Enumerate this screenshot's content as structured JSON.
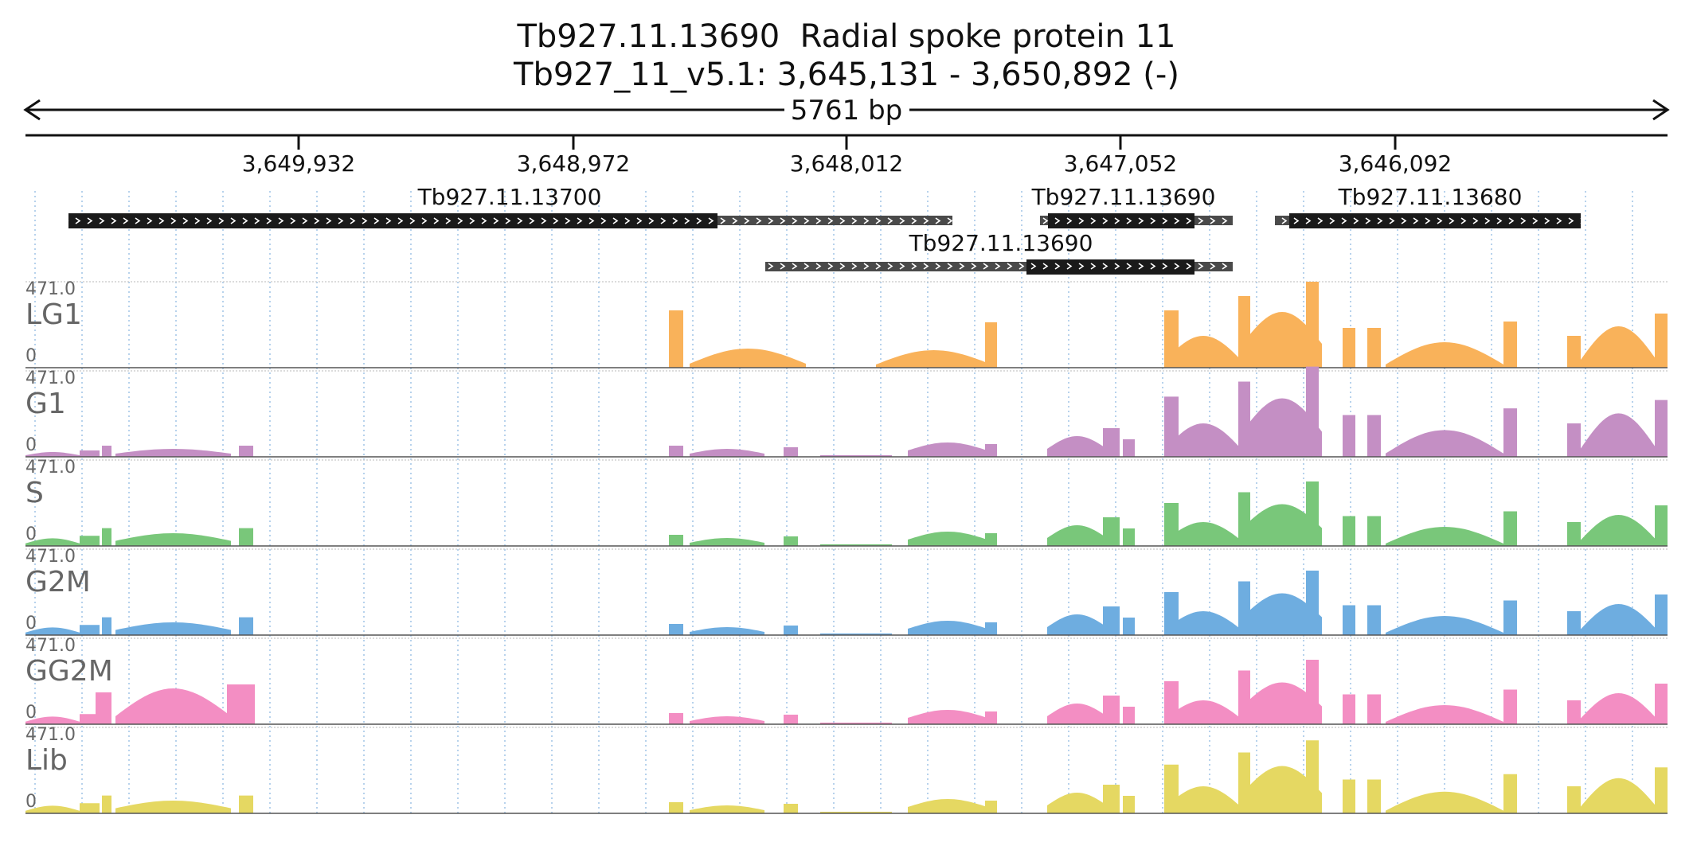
{
  "header": {
    "title": "Tb927.11.13690  Radial spoke protein 11",
    "location": "Tb927_11_v5.1: 3,645,131 - 3,650,892 (-)",
    "span_label": "5761 bp"
  },
  "ruler": {
    "ticks": [
      "3,649,932",
      "3,648,972",
      "3,648,012",
      "3,647,052",
      "3,646,092"
    ]
  },
  "genes": [
    {
      "id": "Tb927.11.13700"
    },
    {
      "id": "Tb927.11.13690"
    },
    {
      "id": "Tb927.11.13680"
    },
    {
      "id": "Tb927.11.13690"
    }
  ],
  "tracks": [
    {
      "name": "LG1",
      "max": "471.0",
      "min": "0",
      "color": "#f9b25a"
    },
    {
      "name": "G1",
      "max": "471.0",
      "min": "0",
      "color": "#c48fc4"
    },
    {
      "name": "S",
      "max": "471.0",
      "min": "0",
      "color": "#79c77a"
    },
    {
      "name": "G2M",
      "max": "471.0",
      "min": "0",
      "color": "#6eade0"
    },
    {
      "name": "GG2M",
      "max": "471.0",
      "min": "0",
      "color": "#f38ec3"
    },
    {
      "name": "Lib",
      "max": "471.0",
      "min": "0",
      "color": "#e5d862"
    }
  ]
}
